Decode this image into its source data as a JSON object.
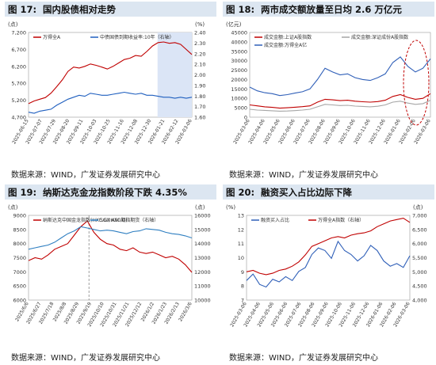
{
  "source_text": "数据来源：WIND，广发证券发展研究中心",
  "chart_data": [
    {
      "type": "line",
      "fig": "图 17:",
      "title": "国内股债相对走势",
      "left_unit": "(点)",
      "right_unit": "(%)",
      "legend": [
        "万得全A",
        "中债国债到期收益率:10年（右轴）"
      ],
      "y_left_ticks": [
        "7,200",
        "6,700",
        "6,200",
        "5,700",
        "5,200",
        "4,700"
      ],
      "y_right_ticks": [
        "2.40",
        "2.30",
        "2.20",
        "2.10",
        "2.00",
        "1.90",
        "1.80",
        "1.70",
        "1.60"
      ],
      "ylim_left": [
        4700,
        7200
      ],
      "ylim_right": [
        1.6,
        2.45
      ],
      "x_labels": [
        "2025-06-15",
        "2025-07-07",
        "2025-07-29",
        "2025-08-20",
        "2025-09-11",
        "2025-10-03",
        "2025-10-25",
        "2025-11-16",
        "2025-12-08",
        "2025-12-30",
        "2026-01-21",
        "2026-02-12",
        "2026-03-06"
      ],
      "shade_from": 0.79,
      "series": [
        {
          "name": "万得全A",
          "axis": "left",
          "color": "#c00000",
          "values": [
            5100,
            5180,
            5230,
            5280,
            5410,
            5600,
            5800,
            6050,
            6180,
            6150,
            6200,
            6270,
            6230,
            6180,
            6120,
            6200,
            6300,
            6400,
            6440,
            6520,
            6500,
            6640,
            6800,
            6900,
            6920,
            6880,
            6900,
            6850,
            6700,
            6550
          ]
        },
        {
          "name": "中债国债到期收益率:10年（右轴）",
          "axis": "right",
          "color": "#1f5fbf",
          "values": [
            1.65,
            1.64,
            1.66,
            1.67,
            1.68,
            1.72,
            1.75,
            1.78,
            1.8,
            1.82,
            1.81,
            1.84,
            1.83,
            1.82,
            1.82,
            1.83,
            1.84,
            1.85,
            1.84,
            1.83,
            1.84,
            1.82,
            1.82,
            1.81,
            1.8,
            1.8,
            1.79,
            1.8,
            1.79,
            1.8
          ]
        }
      ]
    },
    {
      "type": "line",
      "fig": "图 18:",
      "title": "两市成交额放量至日均 2.6 万亿元",
      "left_unit": "(亿元)",
      "legend": [
        "成交金额:上证A股指数",
        "成交金额:深证成份A股指数",
        "成交金额:万得全A亿"
      ],
      "y_left_ticks": [
        "45000",
        "40000",
        "35000",
        "30000",
        "25000",
        "20000",
        "15000",
        "10000",
        "5000",
        "0"
      ],
      "ylim_left": [
        0,
        45000
      ],
      "x_labels": [
        "2025-03-06",
        "2025-04-06",
        "2025-05-06",
        "2025-06-06",
        "2025-07-06",
        "2025-08-06",
        "2025-09-06",
        "2025-10-06",
        "2025-11-06",
        "2025-12-06",
        "2026-01-06",
        "2026-02-06",
        "2026-03-06"
      ],
      "series": [
        {
          "name": "成交金额:上证A股指数",
          "color": "#c00000",
          "values": [
            6500,
            6000,
            5500,
            5200,
            4800,
            5000,
            5300,
            5600,
            6000,
            8000,
            9500,
            9200,
            8800,
            9000,
            8500,
            8200,
            8000,
            8300,
            9000,
            11000,
            12000,
            10500,
            9500,
            10000,
            12500
          ]
        },
        {
          "name": "成交金额:深证成份A股指数",
          "color": "#a6a6a6",
          "values": [
            4200,
            3800,
            3600,
            3400,
            3200,
            3300,
            3500,
            3800,
            4200,
            5500,
            6800,
            6500,
            6200,
            6300,
            5900,
            5700,
            5500,
            5800,
            6500,
            8000,
            8500,
            7500,
            6800,
            7200,
            9000
          ]
        },
        {
          "name": "成交金额:万得全A亿",
          "color": "#2f5fb8",
          "values": [
            16000,
            14000,
            13000,
            12500,
            11500,
            12000,
            12800,
            13500,
            15000,
            20000,
            26000,
            24000,
            22500,
            23000,
            21000,
            20000,
            19500,
            21000,
            23000,
            29000,
            32000,
            27000,
            24000,
            26000,
            31000
          ]
        }
      ]
    },
    {
      "type": "line",
      "fig": "图 19:",
      "title": "纳斯达克金龙指数阶段下跌 4.35%",
      "left_unit": "(点)",
      "right_unit": "(点)",
      "legend": [
        "纳斯达克中国金龙指数(HXC.GI)HXC.GI",
        "SGX A50期指期货（右轴）"
      ],
      "y_left_ticks": [
        "9000",
        "8500",
        "8000",
        "7500",
        "7000",
        "6500",
        "6000"
      ],
      "y_right_ticks": [
        "16000",
        "15000",
        "14000",
        "13000",
        "12000",
        "11000",
        "10000"
      ],
      "ylim_left": [
        6000,
        9000
      ],
      "ylim_right": [
        10000,
        16000
      ],
      "x_labels": [
        "2025/6/6",
        "2025/6/27",
        "2025/7/18",
        "2025/8/8",
        "2025/8/29",
        "2025/9/19",
        "2025/10/10",
        "2025/10/31",
        "2025/11/21",
        "2025/12/12",
        "2026/1/2",
        "2026/1/23",
        "2026/2/13",
        "2026/3/6"
      ],
      "vline_at": 0.37,
      "series": [
        {
          "name": "纳斯达克中国金龙指数(HXC.GI)HXC.GI",
          "axis": "left",
          "color": "#c00000",
          "values": [
            7400,
            7500,
            7450,
            7600,
            7800,
            7900,
            8000,
            8300,
            8600,
            8800,
            8400,
            8150,
            8000,
            7950,
            7800,
            7750,
            7850,
            7700,
            7650,
            7700,
            7600,
            7500,
            7550,
            7450,
            7250,
            6980
          ]
        },
        {
          "name": "SGX A50期指期货（右轴）",
          "axis": "right",
          "color": "#2f7fc1",
          "values": [
            13600,
            13700,
            13800,
            13900,
            14100,
            14400,
            14700,
            14900,
            15200,
            15100,
            15000,
            14900,
            14950,
            14900,
            14800,
            14700,
            14850,
            14900,
            15050,
            15000,
            14950,
            14800,
            14700,
            14650,
            14550,
            14400
          ]
        }
      ]
    },
    {
      "type": "line",
      "fig": "图 20:",
      "title": "融资买入占比边际下降",
      "left_unit": "(%)",
      "right_unit": "(点)",
      "legend": [
        "融资买入占比",
        "万得全A指数（右轴）"
      ],
      "y_left_ticks": [
        "13",
        "12",
        "11",
        "10",
        "9",
        "8",
        "7"
      ],
      "y_right_ticks": [
        "7,000",
        "6,500",
        "6,000",
        "5,500",
        "5,000",
        "4,500",
        "4,000"
      ],
      "ylim_left": [
        7,
        13.5
      ],
      "ylim_right": [
        4000,
        7000
      ],
      "x_labels": [
        "2025-03-06",
        "2025-04-06",
        "2025-05-06",
        "2025-06-06",
        "2025-07-06",
        "2025-08-06",
        "2025-09-06",
        "2025-10-06",
        "2025-11-06",
        "2025-12-06",
        "2026-01-06",
        "2026-02-06",
        "2026-03-06"
      ],
      "series": [
        {
          "name": "融资买入占比",
          "axis": "left",
          "color": "#2f5fb8",
          "values": [
            8.5,
            9.0,
            8.2,
            8.0,
            8.6,
            8.4,
            8.8,
            8.5,
            9.2,
            9.5,
            10.5,
            11.0,
            10.8,
            10.2,
            11.5,
            10.8,
            10.5,
            10.0,
            10.4,
            11.2,
            10.8,
            10.0,
            9.6,
            9.8,
            9.5,
            10.4
          ]
        },
        {
          "name": "万得全A指数（右轴）",
          "axis": "right",
          "color": "#c00000",
          "values": [
            5000,
            5050,
            4950,
            4900,
            4950,
            5050,
            5100,
            5200,
            5350,
            5600,
            5900,
            6000,
            6100,
            6200,
            6250,
            6200,
            6300,
            6350,
            6380,
            6450,
            6600,
            6700,
            6800,
            6850,
            6900,
            6750
          ]
        }
      ]
    }
  ]
}
